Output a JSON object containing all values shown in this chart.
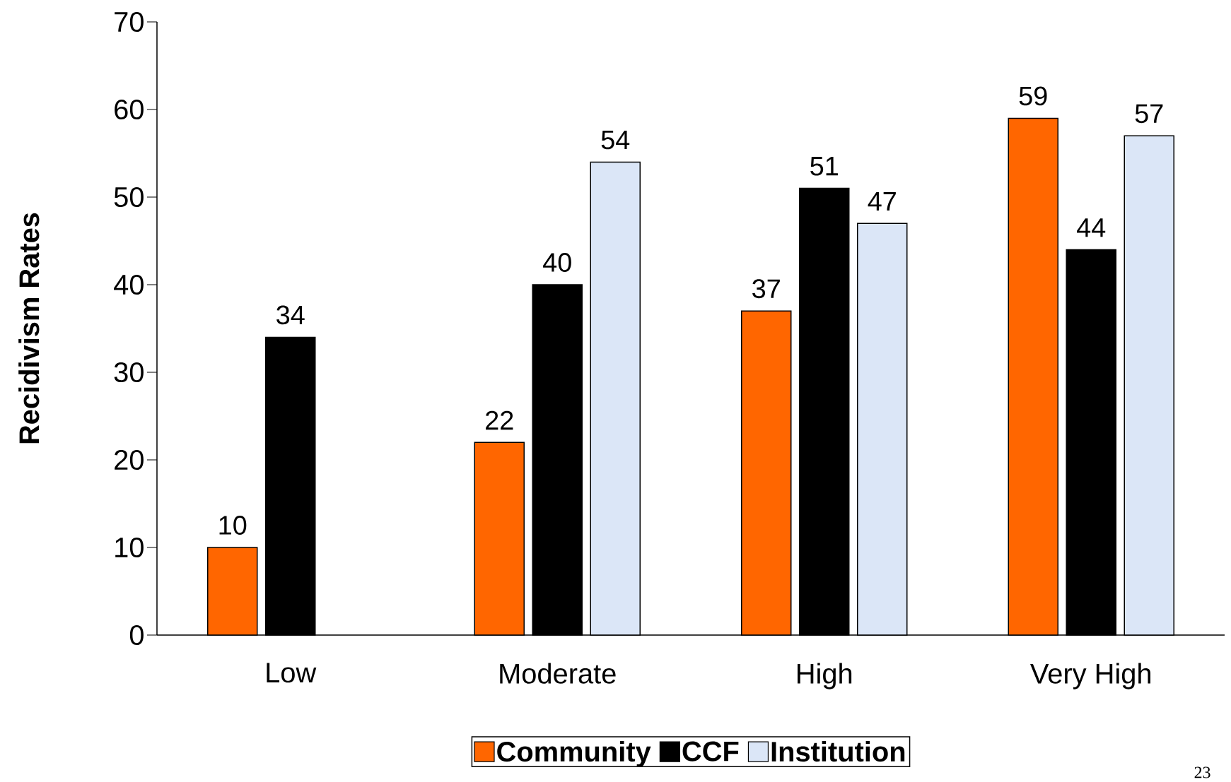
{
  "chart_data": {
    "type": "bar",
    "ylabel": "Recidivism Rates",
    "categories": [
      "Low",
      "Moderate",
      "High",
      "Very High"
    ],
    "series": [
      {
        "name": "Community",
        "color": "#ff6600",
        "values": [
          10,
          22,
          37,
          59
        ]
      },
      {
        "name": "CCF",
        "color": "#000000",
        "values": [
          34,
          40,
          51,
          44
        ]
      },
      {
        "name": "Institution",
        "color": "#dbe6f7",
        "values": [
          null,
          54,
          47,
          57
        ]
      }
    ],
    "ylim": [
      0,
      70
    ],
    "yticks": [
      0,
      10,
      20,
      30,
      40,
      50,
      60,
      70
    ],
    "data_labels": true,
    "legend": "bottom",
    "grid": false,
    "annotations": [
      "23"
    ]
  }
}
